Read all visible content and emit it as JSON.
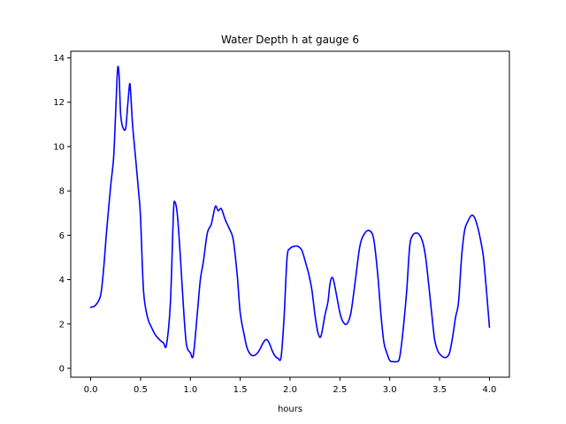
{
  "chart_data": {
    "type": "line",
    "title": "Water Depth h at gauge 6",
    "xlabel": "hours",
    "ylabel": "",
    "xlim": [
      -0.2,
      4.2
    ],
    "ylim": [
      -0.4,
      14.3
    ],
    "xticks": [
      0.0,
      0.5,
      1.0,
      1.5,
      2.0,
      2.5,
      3.0,
      3.5,
      4.0
    ],
    "xtick_labels": [
      "0.0",
      "0.5",
      "1.0",
      "1.5",
      "2.0",
      "2.5",
      "3.0",
      "3.5",
      "4.0"
    ],
    "yticks": [
      0,
      2,
      4,
      6,
      8,
      10,
      12,
      14
    ],
    "ytick_labels": [
      "0",
      "2",
      "4",
      "6",
      "8",
      "10",
      "12",
      "14"
    ],
    "grid": false,
    "legend": "none",
    "series": [
      {
        "color": "#0000ff",
        "x": [
          0.0,
          0.05,
          0.1,
          0.13,
          0.16,
          0.2,
          0.23,
          0.25,
          0.27,
          0.285,
          0.3,
          0.32,
          0.35,
          0.37,
          0.39,
          0.4,
          0.42,
          0.45,
          0.48,
          0.5,
          0.53,
          0.57,
          0.61,
          0.65,
          0.7,
          0.73,
          0.76,
          0.8,
          0.83,
          0.845,
          0.87,
          0.9,
          0.93,
          0.96,
          1.0,
          1.03,
          1.07,
          1.1,
          1.13,
          1.17,
          1.21,
          1.25,
          1.28,
          1.31,
          1.35,
          1.39,
          1.43,
          1.47,
          1.5,
          1.54,
          1.57,
          1.61,
          1.65,
          1.69,
          1.73,
          1.76,
          1.79,
          1.82,
          1.85,
          1.88,
          1.91,
          1.94,
          1.97,
          2.0,
          2.04,
          2.08,
          2.12,
          2.16,
          2.19,
          2.22,
          2.25,
          2.28,
          2.31,
          2.35,
          2.38,
          2.4,
          2.42,
          2.44,
          2.47,
          2.5,
          2.53,
          2.57,
          2.61,
          2.65,
          2.7,
          2.75,
          2.8,
          2.84,
          2.88,
          2.91,
          2.94,
          2.97,
          3.0,
          3.03,
          3.06,
          3.09,
          3.11,
          3.14,
          3.17,
          3.2,
          3.23,
          3.27,
          3.3,
          3.33,
          3.36,
          3.39,
          3.42,
          3.45,
          3.48,
          3.51,
          3.54,
          3.57,
          3.6,
          3.63,
          3.66,
          3.69,
          3.72,
          3.75,
          3.78,
          3.82,
          3.85,
          3.88,
          3.91,
          3.94,
          3.97,
          4.0
        ],
        "y": [
          2.75,
          2.85,
          3.3,
          4.5,
          6.2,
          8.2,
          9.5,
          11.5,
          13.5,
          13.2,
          11.5,
          10.9,
          10.8,
          11.8,
          12.8,
          12.5,
          11.0,
          9.5,
          8.0,
          6.8,
          3.5,
          2.3,
          1.85,
          1.5,
          1.25,
          1.15,
          1.05,
          3.0,
          7.0,
          7.5,
          6.9,
          5.0,
          2.8,
          1.1,
          0.7,
          0.6,
          2.5,
          4.0,
          4.8,
          6.1,
          6.5,
          7.3,
          7.1,
          7.2,
          6.7,
          6.3,
          5.8,
          4.2,
          2.5,
          1.5,
          0.9,
          0.6,
          0.6,
          0.8,
          1.15,
          1.3,
          1.15,
          0.8,
          0.55,
          0.45,
          0.5,
          2.3,
          5.0,
          5.4,
          5.5,
          5.5,
          5.3,
          4.7,
          4.2,
          3.5,
          2.4,
          1.6,
          1.45,
          2.4,
          3.0,
          3.8,
          4.1,
          3.9,
          3.2,
          2.5,
          2.1,
          2.0,
          2.5,
          3.8,
          5.5,
          6.1,
          6.2,
          5.8,
          4.2,
          2.5,
          1.2,
          0.7,
          0.35,
          0.3,
          0.3,
          0.35,
          0.8,
          2.0,
          3.5,
          5.5,
          6.0,
          6.1,
          6.0,
          5.7,
          5.0,
          3.8,
          2.5,
          1.3,
          0.8,
          0.6,
          0.5,
          0.5,
          0.7,
          1.4,
          2.3,
          3.0,
          5.0,
          6.2,
          6.6,
          6.9,
          6.8,
          6.4,
          5.8,
          5.0,
          3.5,
          1.85
        ]
      }
    ]
  }
}
